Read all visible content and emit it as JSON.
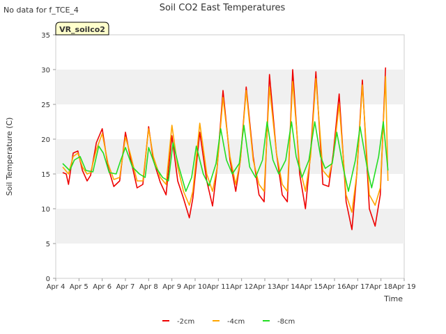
{
  "page": {
    "no_data_note": "No data for f_TCE_4",
    "badge": "VR_soilco2"
  },
  "chart_data": {
    "type": "line",
    "title": "Soil CO2 East Temperatures",
    "xlabel": "Time",
    "ylabel": "Soil Temperature (C)",
    "xlim": [
      "Apr 4",
      "Apr 19"
    ],
    "ylim": [
      0,
      35
    ],
    "x_ticks": [
      "Apr 4",
      "Apr 5",
      "Apr 6",
      "Apr 7",
      "Apr 8",
      "Apr 9",
      "Apr 10",
      "Apr 11",
      "Apr 12",
      "Apr 13",
      "Apr 14",
      "Apr 15",
      "Apr 16",
      "Apr 17",
      "Apr 18",
      "Apr 19"
    ],
    "y_ticks": [
      0,
      5,
      10,
      15,
      20,
      25,
      30,
      35
    ],
    "grid": "alternating horizontal bands",
    "legend_position": "bottom-center",
    "series": [
      {
        "name": "-2cm",
        "color": "#ee0000",
        "x": [
          0.3,
          0.45,
          0.55,
          0.75,
          0.95,
          1.15,
          1.35,
          1.5,
          1.75,
          2.0,
          2.25,
          2.5,
          2.75,
          3.0,
          3.2,
          3.5,
          3.75,
          4.0,
          4.2,
          4.5,
          4.75,
          5.0,
          5.25,
          5.5,
          5.75,
          5.9,
          6.2,
          6.5,
          6.75,
          6.95,
          7.2,
          7.5,
          7.75,
          7.95,
          8.2,
          8.5,
          8.75,
          8.97,
          9.2,
          9.5,
          9.75,
          9.97,
          10.2,
          10.5,
          10.75,
          10.97,
          11.2,
          11.5,
          11.75,
          11.95,
          12.2,
          12.5,
          12.75,
          12.96,
          13.2,
          13.5,
          13.75,
          13.97,
          14.2
        ],
        "values": [
          15.2,
          15.0,
          13.5,
          18.0,
          18.3,
          15.5,
          14.0,
          14.8,
          19.5,
          21.5,
          16.0,
          13.2,
          14.0,
          21.0,
          17.5,
          13.0,
          13.5,
          21.8,
          17.0,
          13.8,
          12.0,
          20.5,
          14.0,
          11.5,
          8.7,
          11.5,
          21.0,
          14.0,
          10.4,
          16.0,
          27.0,
          17.0,
          12.5,
          17.0,
          27.5,
          17.5,
          12.0,
          11.0,
          29.3,
          18.0,
          12.0,
          11.0,
          30.0,
          15.0,
          10.0,
          18.0,
          29.7,
          13.5,
          13.2,
          18.0,
          26.5,
          11.0,
          7.0,
          15.0,
          28.5,
          10.0,
          7.5,
          12.0,
          30.3
        ]
      },
      {
        "name": "-4cm",
        "color": "#ffa500",
        "x": [
          0.3,
          0.55,
          0.75,
          0.95,
          1.15,
          1.35,
          1.5,
          1.75,
          2.0,
          2.25,
          2.5,
          2.75,
          3.0,
          3.2,
          3.5,
          3.75,
          4.0,
          4.2,
          4.5,
          4.75,
          5.0,
          5.25,
          5.5,
          5.75,
          5.9,
          6.2,
          6.5,
          6.75,
          6.95,
          7.2,
          7.5,
          7.75,
          7.95,
          8.2,
          8.5,
          8.75,
          8.97,
          9.2,
          9.5,
          9.75,
          9.97,
          10.2,
          10.5,
          10.75,
          10.97,
          11.2,
          11.5,
          11.75,
          11.95,
          12.2,
          12.5,
          12.75,
          12.96,
          13.2,
          13.5,
          13.75,
          13.97,
          14.2,
          14.3
        ],
        "values": [
          16.0,
          15.0,
          17.5,
          18.0,
          16.0,
          15.0,
          15.2,
          18.5,
          20.8,
          16.5,
          14.2,
          14.5,
          20.3,
          18.0,
          14.0,
          14.0,
          21.5,
          17.5,
          14.5,
          13.5,
          22.0,
          16.0,
          12.5,
          10.5,
          12.5,
          22.3,
          15.0,
          12.5,
          16.0,
          26.0,
          17.5,
          13.5,
          17.0,
          27.0,
          17.0,
          13.5,
          12.5,
          27.5,
          18.0,
          13.5,
          12.5,
          28.3,
          16.0,
          12.5,
          17.5,
          28.7,
          15.5,
          14.5,
          17.5,
          25.0,
          12.0,
          9.5,
          15.0,
          27.8,
          12.0,
          10.5,
          13.0,
          29.0,
          14.0
        ]
      },
      {
        "name": "-8cm",
        "color": "#22dd22",
        "x": [
          0.3,
          0.6,
          0.8,
          1.05,
          1.3,
          1.6,
          1.85,
          2.05,
          2.3,
          2.6,
          2.8,
          3.0,
          3.3,
          3.6,
          3.85,
          4.0,
          4.3,
          4.6,
          4.85,
          5.05,
          5.3,
          5.6,
          5.85,
          6.05,
          6.35,
          6.6,
          6.9,
          7.1,
          7.35,
          7.6,
          7.9,
          8.1,
          8.35,
          8.6,
          8.9,
          9.1,
          9.35,
          9.6,
          9.9,
          10.15,
          10.35,
          10.6,
          10.9,
          11.15,
          11.4,
          11.6,
          11.9,
          12.1,
          12.4,
          12.6,
          12.9,
          13.1,
          13.4,
          13.6,
          13.9,
          14.1,
          14.3
        ],
        "values": [
          16.5,
          15.5,
          17.0,
          17.5,
          15.5,
          15.3,
          19.0,
          18.0,
          15.2,
          15.0,
          17.0,
          18.8,
          16.0,
          15.0,
          14.5,
          18.8,
          16.0,
          14.5,
          14.0,
          19.5,
          16.0,
          12.5,
          14.5,
          19.0,
          15.0,
          13.3,
          16.5,
          21.5,
          17.0,
          15.0,
          16.5,
          22.0,
          16.0,
          14.5,
          17.0,
          22.5,
          17.0,
          15.0,
          17.0,
          22.5,
          17.5,
          14.5,
          17.0,
          22.5,
          17.5,
          15.8,
          16.5,
          21.0,
          15.5,
          12.5,
          17.0,
          21.8,
          16.0,
          13.0,
          17.5,
          22.5,
          15.5
        ]
      }
    ]
  }
}
